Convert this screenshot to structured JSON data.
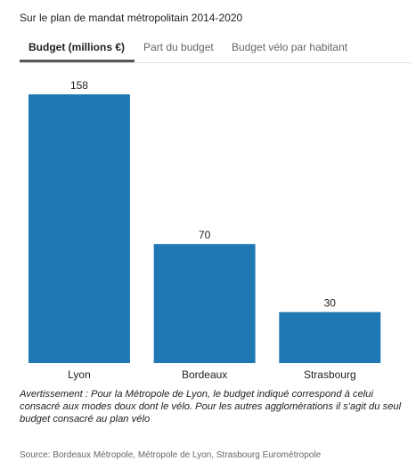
{
  "subtitle": "Sur le plan de mandat métropolitain 2014-2020",
  "tabs": [
    {
      "label": "Budget (millions €)",
      "active": true
    },
    {
      "label": "Part du budget",
      "active": false
    },
    {
      "label": "Budget vélo par habitant",
      "active": false
    }
  ],
  "colors": {
    "bar": "#1f77b4",
    "tab_underline": "#555555",
    "baseline": "#cccccc"
  },
  "chart_data": {
    "type": "bar",
    "categories": [
      "Lyon",
      "Bordeaux",
      "Strasbourg"
    ],
    "values": [
      158,
      70,
      30
    ],
    "title": "",
    "xlabel": "",
    "ylabel": "",
    "ylim": [
      0,
      158
    ],
    "grid": false,
    "legend": "none",
    "data_labels": true
  },
  "note": "Avertissement : Pour la Métropole de Lyon, le budget indiqué correspond à celui consacré aux modes doux dont le vélo. Pour les autres agglomérations il s'agit du seul budget consacré au plan vélo",
  "source": "Source: Bordeaux Métropole, Métropole de Lyon, Strasbourg Eurométropole"
}
